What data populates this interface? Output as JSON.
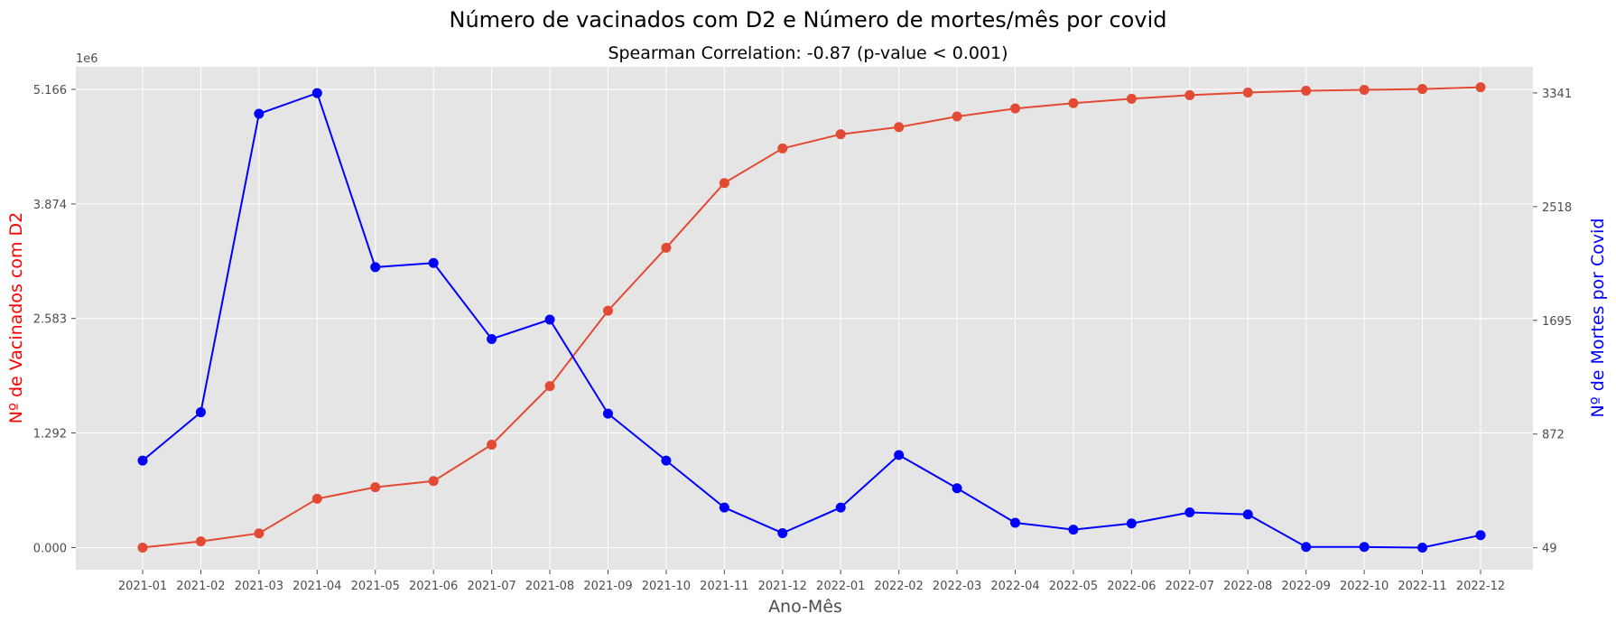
{
  "chart_data": {
    "type": "line",
    "title": "Número de vacinados com D2 e Número de mortes/mês por covid",
    "subtitle": "Spearman Correlation: -0.87 (p-value < 0.001)",
    "xlabel": "Ano-Mês",
    "ylabel_left": "Nº de Vacinados com D2",
    "ylabel_right": "Nº de Mortes por Covid",
    "left_scale_label": "1e6",
    "left_ticks": [
      "0.000",
      "1.292",
      "2.583",
      "3.874",
      "5.166"
    ],
    "left_tick_values": [
      0,
      1.292,
      2.583,
      3.874,
      5.166
    ],
    "right_ticks": [
      "49",
      "872",
      "1695",
      "2518",
      "3341"
    ],
    "right_tick_values": [
      49,
      872,
      1695,
      2518,
      3341
    ],
    "ylim_left": [
      -0.25,
      5.42
    ],
    "ylim_right": [
      -110,
      3530
    ],
    "grid": true,
    "colors": {
      "left": "#ff0000",
      "right": "#0000ff",
      "vacinados_line": "#e24a33",
      "mortes_line": "#0000ff",
      "plot_bg": "#e5e5e5",
      "grid": "#ffffff"
    },
    "categories": [
      "2021-01",
      "2021-02",
      "2021-03",
      "2021-04",
      "2021-05",
      "2021-06",
      "2021-07",
      "2021-08",
      "2021-09",
      "2021-10",
      "2021-11",
      "2021-12",
      "2022-01",
      "2022-02",
      "2022-03",
      "2022-04",
      "2022-05",
      "2022-06",
      "2022-07",
      "2022-08",
      "2022-09",
      "2022-10",
      "2022-11",
      "2022-12"
    ],
    "series": [
      {
        "axis": "left",
        "color": "#e24a33",
        "values": [
          0.0,
          0.07,
          0.16,
          0.55,
          0.68,
          0.75,
          1.16,
          1.82,
          2.67,
          3.38,
          4.11,
          4.5,
          4.66,
          4.74,
          4.86,
          4.95,
          5.01,
          5.06,
          5.1,
          5.13,
          5.15,
          5.16,
          5.17,
          5.19
        ]
      },
      {
        "axis": "right",
        "color": "#0000ff",
        "values": [
          680,
          1030,
          3190,
          3340,
          2080,
          2110,
          1560,
          1700,
          1020,
          680,
          340,
          155,
          340,
          720,
          480,
          230,
          180,
          225,
          305,
          290,
          55,
          55,
          50,
          140
        ]
      }
    ]
  }
}
